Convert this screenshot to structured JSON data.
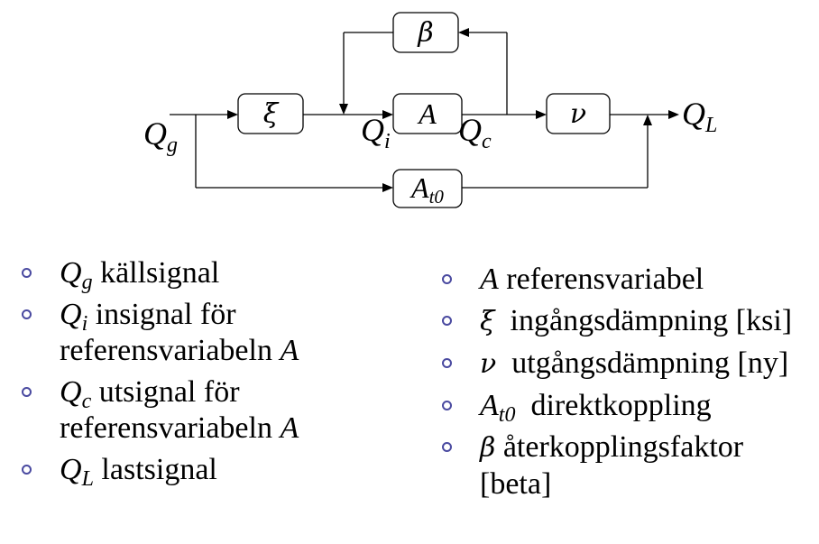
{
  "diagram": {
    "blocks": {
      "xi": "ξ",
      "beta": "β",
      "A": "A",
      "nu": "ν",
      "At0_main": "A",
      "At0_sub": "t0"
    },
    "signals": {
      "Qg_main": "Q",
      "Qg_sub": "g",
      "Qi_main": "Q",
      "Qi_sub": "i",
      "Qc_main": "Q",
      "Qc_sub": "c",
      "QL_main": "Q",
      "QL_sub": "L"
    }
  },
  "legend_left": [
    {
      "sym": "Q",
      "sub": "g",
      "text": "källsignal"
    },
    {
      "sym": "Q",
      "sub": "i",
      "text": "insignal för referensvariabeln ",
      "tail": "A"
    },
    {
      "sym": "Q",
      "sub": "c",
      "text": "utsignal för referensvariabeln ",
      "tail": "A"
    },
    {
      "sym": "Q",
      "sub": "L",
      "text": "lastsignal"
    }
  ],
  "legend_right": [
    {
      "sym": "A",
      "sub": "",
      "text": "referensvariabel"
    },
    {
      "sym": "ξ",
      "sub": "",
      "text": "ingångsdämpning [ksi]"
    },
    {
      "sym": "ν",
      "sub": "",
      "text": "utgångsdämpning [ny]"
    },
    {
      "sym": "A",
      "sub": "t0",
      "text": "direktkoppling"
    },
    {
      "sym": "β",
      "sub": "",
      "text": "återkopplingsfaktor [beta]"
    }
  ]
}
